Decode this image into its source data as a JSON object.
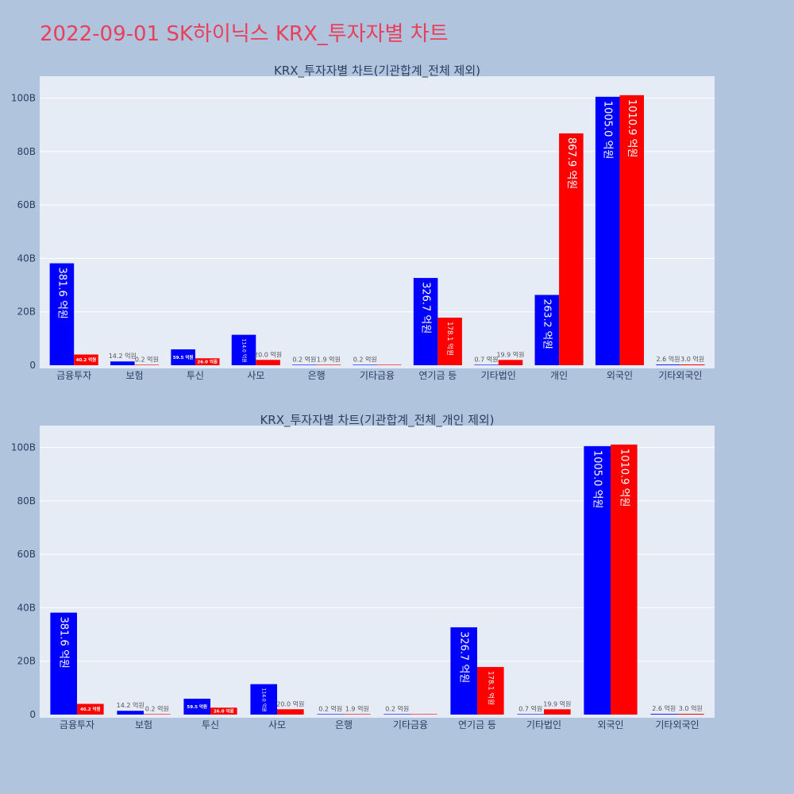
{
  "page": {
    "title": "2022-09-01 SK하이닉스 KRX_투자자별 차트"
  },
  "colors": {
    "background": "#B0C4DE",
    "plot_bg": "#E5ECF6",
    "title": "#E8405A",
    "series_buy": "#0000FF",
    "series_sell": "#FF0000"
  },
  "chart_data": [
    {
      "type": "bar",
      "title": "KRX_투자자별 차트(기관합계_전체 제외)",
      "categories": [
        "금융투자",
        "보험",
        "투신",
        "사모",
        "은행",
        "기타금융",
        "연기금 등",
        "기타법인",
        "개인",
        "외국인",
        "기타외국인"
      ],
      "series": [
        {
          "color": "#0000FF",
          "values": [
            38.16,
            1.42,
            5.95,
            11.4,
            0.02,
            0.02,
            32.67,
            0.07,
            26.32,
            100.5,
            0.26
          ],
          "labels": [
            "381.6 억원",
            "14.2 억원",
            "59.5 억원",
            "114.0 억원",
            "0.2 억원",
            "0.2 억원",
            "326.7 억원",
            "0.7 억원",
            "263.2 억원",
            "1005.0 억원",
            "2.6 억원"
          ]
        },
        {
          "color": "#FF0000",
          "values": [
            4.02,
            0.02,
            2.6,
            2.0,
            0.19,
            0,
            17.81,
            1.99,
            86.79,
            101.09,
            0.3
          ],
          "labels": [
            "40.2 억원",
            "0.2 억원",
            "26.0 억원",
            "20.0 억원",
            "1.9 억원",
            "",
            "178.1 억원",
            "19.9 억원",
            "867.9 억원",
            "1010.9 억원",
            "3.0 억원"
          ]
        }
      ],
      "yticks": [
        "0",
        "20B",
        "40B",
        "60B",
        "80B",
        "100B"
      ],
      "ylim": [
        0,
        107
      ],
      "grid": true
    },
    {
      "type": "bar",
      "title": "KRX_투자자별 차트(기관합계_전체_개인 제외)",
      "categories": [
        "금융투자",
        "보험",
        "투신",
        "사모",
        "은행",
        "기타금융",
        "연기금 등",
        "기타법인",
        "외국인",
        "기타외국인"
      ],
      "series": [
        {
          "color": "#0000FF",
          "values": [
            38.16,
            1.42,
            5.95,
            11.4,
            0.02,
            0.02,
            32.67,
            0.07,
            100.5,
            0.26
          ],
          "labels": [
            "381.6 억원",
            "14.2 억원",
            "59.5 억원",
            "114.0 억원",
            "0.2 억원",
            "0.2 억원",
            "326.7 억원",
            "0.7 억원",
            "1005.0 억원",
            "2.6 억원"
          ]
        },
        {
          "color": "#FF0000",
          "values": [
            4.02,
            0.02,
            2.6,
            2.0,
            0.19,
            0,
            17.81,
            1.99,
            101.09,
            0.3
          ],
          "labels": [
            "40.2 억원",
            "0.2 억원",
            "26.0 억원",
            "20.0 억원",
            "1.9 억원",
            "",
            "178.1 억원",
            "19.9 억원",
            "1010.9 억원",
            "3.0 억원"
          ]
        }
      ],
      "yticks": [
        "0",
        "20B",
        "40B",
        "60B",
        "80B",
        "100B"
      ],
      "ylim": [
        0,
        107
      ],
      "grid": true
    }
  ]
}
